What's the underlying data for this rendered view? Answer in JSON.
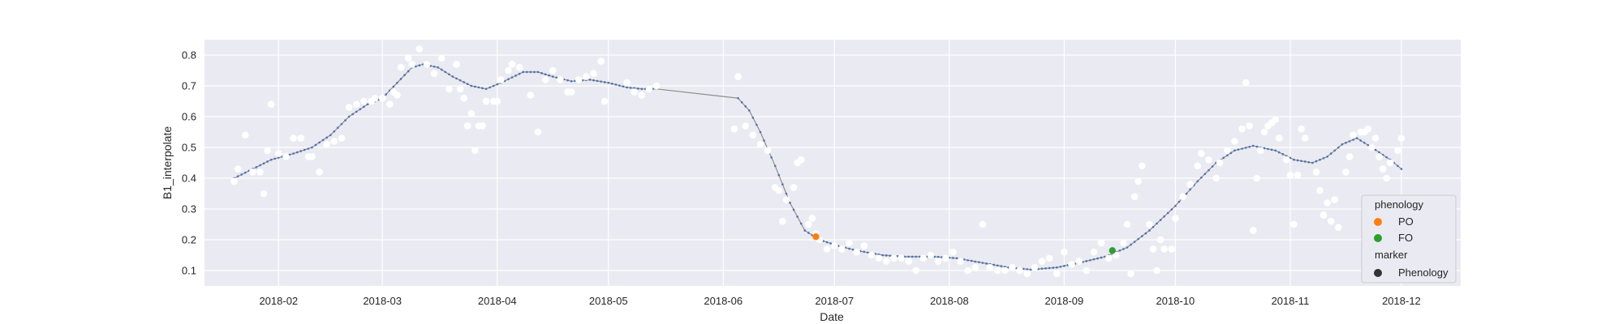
{
  "chart_data": {
    "type": "scatter",
    "xlabel": "Date",
    "ylabel": "B1_interpolate",
    "x_range": [
      "2018-01-12",
      "2018-12-17"
    ],
    "ylim": [
      0.05,
      0.85
    ],
    "x_ticks": [
      "2018-02",
      "2018-03",
      "2018-04",
      "2018-05",
      "2018-06",
      "2018-07",
      "2018-08",
      "2018-09",
      "2018-10",
      "2018-11",
      "2018-12"
    ],
    "y_ticks": [
      "0.1",
      "0.2",
      "0.3",
      "0.4",
      "0.5",
      "0.6",
      "0.7",
      "0.8"
    ],
    "grid": true,
    "legend_position": "lower-right",
    "legend": {
      "hue_title": "phenology",
      "hue_entries": [
        {
          "label": "PO",
          "color": "#ff7f0e"
        },
        {
          "label": "FO",
          "color": "#2ca02c"
        }
      ],
      "marker_title": "marker",
      "marker_entries": [
        {
          "label": "Phenology",
          "color": "#333333"
        }
      ]
    },
    "colors": {
      "background": "#eaeaf2",
      "grid": "#ffffff",
      "observed": "#ffffff",
      "curve_line": "#8c8c8c",
      "curve_points": "#4c72b0"
    },
    "observed_points": [
      [
        "2018-01-20",
        0.39
      ],
      [
        "2018-01-21",
        0.43
      ],
      [
        "2018-01-23",
        0.54
      ],
      [
        "2018-01-25",
        0.42
      ],
      [
        "2018-01-27",
        0.42
      ],
      [
        "2018-01-28",
        0.35
      ],
      [
        "2018-01-29",
        0.49
      ],
      [
        "2018-01-30",
        0.64
      ],
      [
        "2018-02-01",
        0.48
      ],
      [
        "2018-02-03",
        0.47
      ],
      [
        "2018-02-05",
        0.53
      ],
      [
        "2018-02-07",
        0.53
      ],
      [
        "2018-02-09",
        0.47
      ],
      [
        "2018-02-10",
        0.47
      ],
      [
        "2018-02-12",
        0.42
      ],
      [
        "2018-02-14",
        0.51
      ],
      [
        "2018-02-16",
        0.52
      ],
      [
        "2018-02-18",
        0.53
      ],
      [
        "2018-02-20",
        0.63
      ],
      [
        "2018-02-22",
        0.64
      ],
      [
        "2018-02-24",
        0.65
      ],
      [
        "2018-02-26",
        0.65
      ],
      [
        "2018-02-27",
        0.66
      ],
      [
        "2018-03-01",
        0.66
      ],
      [
        "2018-03-03",
        0.64
      ],
      [
        "2018-03-04",
        0.68
      ],
      [
        "2018-03-05",
        0.67
      ],
      [
        "2018-03-06",
        0.76
      ],
      [
        "2018-03-08",
        0.79
      ],
      [
        "2018-03-09",
        0.77
      ],
      [
        "2018-03-11",
        0.82
      ],
      [
        "2018-03-13",
        0.77
      ],
      [
        "2018-03-15",
        0.74
      ],
      [
        "2018-03-17",
        0.79
      ],
      [
        "2018-03-19",
        0.69
      ],
      [
        "2018-03-21",
        0.77
      ],
      [
        "2018-03-22",
        0.69
      ],
      [
        "2018-03-23",
        0.66
      ],
      [
        "2018-03-24",
        0.57
      ],
      [
        "2018-03-25",
        0.61
      ],
      [
        "2018-03-26",
        0.49
      ],
      [
        "2018-03-27",
        0.57
      ],
      [
        "2018-03-28",
        0.57
      ],
      [
        "2018-03-29",
        0.65
      ],
      [
        "2018-03-31",
        0.65
      ],
      [
        "2018-04-01",
        0.65
      ],
      [
        "2018-04-02",
        0.72
      ],
      [
        "2018-04-04",
        0.75
      ],
      [
        "2018-04-05",
        0.77
      ],
      [
        "2018-04-07",
        0.76
      ],
      [
        "2018-04-10",
        0.67
      ],
      [
        "2018-04-12",
        0.55
      ],
      [
        "2018-04-14",
        0.72
      ],
      [
        "2018-04-16",
        0.75
      ],
      [
        "2018-04-18",
        0.72
      ],
      [
        "2018-04-20",
        0.68
      ],
      [
        "2018-04-21",
        0.68
      ],
      [
        "2018-04-23",
        0.72
      ],
      [
        "2018-04-25",
        0.73
      ],
      [
        "2018-04-27",
        0.74
      ],
      [
        "2018-04-29",
        0.78
      ],
      [
        "2018-04-30",
        0.65
      ],
      [
        "2018-05-06",
        0.71
      ],
      [
        "2018-05-08",
        0.68
      ],
      [
        "2018-05-10",
        0.67
      ],
      [
        "2018-05-12",
        0.69
      ],
      [
        "2018-05-14",
        0.7
      ],
      [
        "2018-06-04",
        0.56
      ],
      [
        "2018-06-05",
        0.73
      ],
      [
        "2018-06-07",
        0.57
      ],
      [
        "2018-06-09",
        0.54
      ],
      [
        "2018-06-11",
        0.51
      ],
      [
        "2018-06-13",
        0.49
      ],
      [
        "2018-06-15",
        0.37
      ],
      [
        "2018-06-16",
        0.36
      ],
      [
        "2018-06-17",
        0.26
      ],
      [
        "2018-06-18",
        0.33
      ],
      [
        "2018-06-20",
        0.37
      ],
      [
        "2018-06-21",
        0.45
      ],
      [
        "2018-06-22",
        0.46
      ],
      [
        "2018-06-24",
        0.25
      ],
      [
        "2018-06-25",
        0.27
      ],
      [
        "2018-06-26",
        0.22
      ],
      [
        "2018-06-27",
        0.2
      ],
      [
        "2018-06-29",
        0.17
      ],
      [
        "2018-07-01",
        0.18
      ],
      [
        "2018-07-03",
        0.17
      ],
      [
        "2018-07-05",
        0.19
      ],
      [
        "2018-07-07",
        0.16
      ],
      [
        "2018-07-09",
        0.18
      ],
      [
        "2018-07-11",
        0.15
      ],
      [
        "2018-07-13",
        0.14
      ],
      [
        "2018-07-15",
        0.13
      ],
      [
        "2018-07-17",
        0.14
      ],
      [
        "2018-07-19",
        0.14
      ],
      [
        "2018-07-21",
        0.13
      ],
      [
        "2018-07-23",
        0.1
      ],
      [
        "2018-07-25",
        0.14
      ],
      [
        "2018-07-27",
        0.15
      ],
      [
        "2018-07-29",
        0.13
      ],
      [
        "2018-07-31",
        0.14
      ],
      [
        "2018-08-02",
        0.16
      ],
      [
        "2018-08-04",
        0.13
      ],
      [
        "2018-08-06",
        0.1
      ],
      [
        "2018-08-08",
        0.11
      ],
      [
        "2018-08-10",
        0.25
      ],
      [
        "2018-08-12",
        0.11
      ],
      [
        "2018-08-14",
        0.1
      ],
      [
        "2018-08-16",
        0.1
      ],
      [
        "2018-08-18",
        0.11
      ],
      [
        "2018-08-20",
        0.1
      ],
      [
        "2018-08-22",
        0.09
      ],
      [
        "2018-08-24",
        0.11
      ],
      [
        "2018-08-26",
        0.13
      ],
      [
        "2018-08-28",
        0.14
      ],
      [
        "2018-08-30",
        0.09
      ],
      [
        "2018-09-01",
        0.16
      ],
      [
        "2018-09-03",
        0.12
      ],
      [
        "2018-09-05",
        0.13
      ],
      [
        "2018-09-07",
        0.1
      ],
      [
        "2018-09-09",
        0.16
      ],
      [
        "2018-09-11",
        0.19
      ],
      [
        "2018-09-13",
        0.14
      ],
      [
        "2018-09-15",
        0.15
      ],
      [
        "2018-09-17",
        0.19
      ],
      [
        "2018-09-18",
        0.25
      ],
      [
        "2018-09-19",
        0.09
      ],
      [
        "2018-09-20",
        0.34
      ],
      [
        "2018-09-21",
        0.39
      ],
      [
        "2018-09-22",
        0.44
      ],
      [
        "2018-09-24",
        0.25
      ],
      [
        "2018-09-25",
        0.17
      ],
      [
        "2018-09-26",
        0.1
      ],
      [
        "2018-09-27",
        0.2
      ],
      [
        "2018-09-28",
        0.17
      ],
      [
        "2018-09-30",
        0.17
      ],
      [
        "2018-10-01",
        0.27
      ],
      [
        "2018-10-03",
        0.34
      ],
      [
        "2018-10-05",
        0.38
      ],
      [
        "2018-10-07",
        0.44
      ],
      [
        "2018-10-08",
        0.48
      ],
      [
        "2018-10-10",
        0.46
      ],
      [
        "2018-10-12",
        0.4
      ],
      [
        "2018-10-13",
        0.45
      ],
      [
        "2018-10-15",
        0.49
      ],
      [
        "2018-10-17",
        0.52
      ],
      [
        "2018-10-19",
        0.56
      ],
      [
        "2018-10-20",
        0.71
      ],
      [
        "2018-10-21",
        0.57
      ],
      [
        "2018-10-22",
        0.23
      ],
      [
        "2018-10-23",
        0.4
      ],
      [
        "2018-10-24",
        0.49
      ],
      [
        "2018-10-25",
        0.55
      ],
      [
        "2018-10-26",
        0.57
      ],
      [
        "2018-10-27",
        0.58
      ],
      [
        "2018-10-28",
        0.59
      ],
      [
        "2018-10-29",
        0.53
      ],
      [
        "2018-10-31",
        0.46
      ],
      [
        "2018-11-01",
        0.41
      ],
      [
        "2018-11-02",
        0.25
      ],
      [
        "2018-11-03",
        0.41
      ],
      [
        "2018-11-04",
        0.56
      ],
      [
        "2018-11-05",
        0.53
      ],
      [
        "2018-11-08",
        0.42
      ],
      [
        "2018-11-09",
        0.36
      ],
      [
        "2018-11-10",
        0.28
      ],
      [
        "2018-11-11",
        0.32
      ],
      [
        "2018-11-12",
        0.26
      ],
      [
        "2018-11-13",
        0.33
      ],
      [
        "2018-11-14",
        0.24
      ],
      [
        "2018-11-16",
        0.42
      ],
      [
        "2018-11-17",
        0.47
      ],
      [
        "2018-11-18",
        0.54
      ],
      [
        "2018-11-20",
        0.55
      ],
      [
        "2018-11-21",
        0.55
      ],
      [
        "2018-11-22",
        0.56
      ],
      [
        "2018-11-23",
        0.5
      ],
      [
        "2018-11-24",
        0.53
      ],
      [
        "2018-11-25",
        0.47
      ],
      [
        "2018-11-26",
        0.43
      ],
      [
        "2018-11-27",
        0.4
      ],
      [
        "2018-11-28",
        0.45
      ],
      [
        "2018-11-30",
        0.49
      ],
      [
        "2018-12-01",
        0.53
      ]
    ],
    "curve_knots": [
      [
        "2018-01-20",
        0.4
      ],
      [
        "2018-01-25",
        0.43
      ],
      [
        "2018-01-30",
        0.46
      ],
      [
        "2018-02-05",
        0.48
      ],
      [
        "2018-02-10",
        0.5
      ],
      [
        "2018-02-15",
        0.54
      ],
      [
        "2018-02-20",
        0.6
      ],
      [
        "2018-02-25",
        0.64
      ],
      [
        "2018-03-01",
        0.66
      ],
      [
        "2018-03-05",
        0.71
      ],
      [
        "2018-03-09",
        0.76
      ],
      [
        "2018-03-12",
        0.77
      ],
      [
        "2018-03-16",
        0.76
      ],
      [
        "2018-03-20",
        0.73
      ],
      [
        "2018-03-25",
        0.7
      ],
      [
        "2018-03-29",
        0.69
      ],
      [
        "2018-04-02",
        0.71
      ],
      [
        "2018-04-08",
        0.745
      ],
      [
        "2018-04-12",
        0.745
      ],
      [
        "2018-04-16",
        0.73
      ],
      [
        "2018-04-21",
        0.715
      ],
      [
        "2018-04-26",
        0.72
      ],
      [
        "2018-05-01",
        0.71
      ],
      [
        "2018-05-06",
        0.695
      ],
      [
        "2018-05-10",
        0.69
      ],
      [
        "2018-05-14",
        0.69
      ],
      [
        "2018-06-05",
        0.66
      ],
      [
        "2018-06-08",
        0.62
      ],
      [
        "2018-06-11",
        0.55
      ],
      [
        "2018-06-15",
        0.44
      ],
      [
        "2018-06-19",
        0.32
      ],
      [
        "2018-06-23",
        0.23
      ],
      [
        "2018-06-27",
        0.2
      ],
      [
        "2018-07-02",
        0.18
      ],
      [
        "2018-07-07",
        0.165
      ],
      [
        "2018-07-14",
        0.15
      ],
      [
        "2018-07-20",
        0.145
      ],
      [
        "2018-07-28",
        0.145
      ],
      [
        "2018-08-03",
        0.14
      ],
      [
        "2018-08-10",
        0.125
      ],
      [
        "2018-08-17",
        0.11
      ],
      [
        "2018-08-23",
        0.103
      ],
      [
        "2018-08-30",
        0.11
      ],
      [
        "2018-09-05",
        0.125
      ],
      [
        "2018-09-12",
        0.145
      ],
      [
        "2018-09-18",
        0.175
      ],
      [
        "2018-09-24",
        0.23
      ],
      [
        "2018-10-01",
        0.31
      ],
      [
        "2018-10-07",
        0.39
      ],
      [
        "2018-10-12",
        0.45
      ],
      [
        "2018-10-17",
        0.49
      ],
      [
        "2018-10-22",
        0.505
      ],
      [
        "2018-10-28",
        0.49
      ],
      [
        "2018-11-02",
        0.46
      ],
      [
        "2018-11-07",
        0.45
      ],
      [
        "2018-11-11",
        0.47
      ],
      [
        "2018-11-15",
        0.51
      ],
      [
        "2018-11-19",
        0.53
      ],
      [
        "2018-11-23",
        0.5
      ],
      [
        "2018-11-28",
        0.46
      ],
      [
        "2018-12-01",
        0.43
      ]
    ],
    "phenology_points": [
      {
        "label": "PO",
        "x": "2018-06-26",
        "y": 0.21,
        "color": "#ff7f0e"
      },
      {
        "label": "FO",
        "x": "2018-09-14",
        "y": 0.165,
        "color": "#2ca02c"
      }
    ]
  }
}
